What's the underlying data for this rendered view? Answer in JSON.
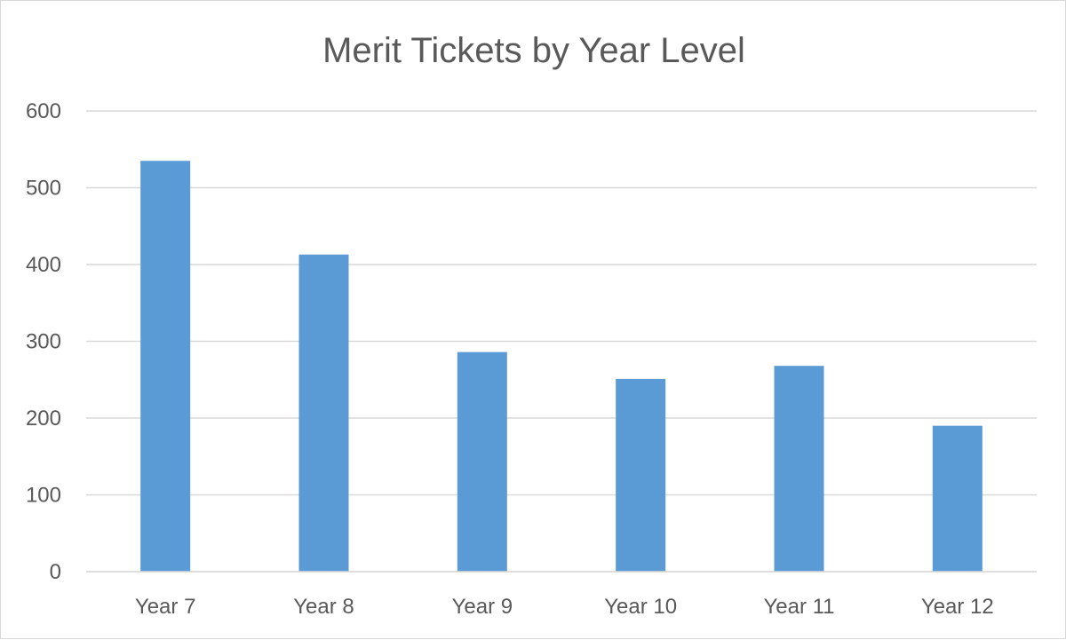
{
  "chart_data": {
    "type": "bar",
    "title": "Merit Tickets by Year Level",
    "xlabel": "",
    "ylabel": "",
    "categories": [
      "Year 7",
      "Year 8",
      "Year 9",
      "Year 10",
      "Year 11",
      "Year 12"
    ],
    "values": [
      535,
      413,
      286,
      251,
      268,
      190
    ],
    "ylim": [
      0,
      600
    ],
    "yticks": [
      "0",
      "100",
      "200",
      "300",
      "400",
      "500",
      "600"
    ],
    "grid": true,
    "legend": "none"
  },
  "colors": {
    "bar": "#5b9bd5",
    "gridline": "#d9d9d9",
    "axis_text": "#595959"
  }
}
